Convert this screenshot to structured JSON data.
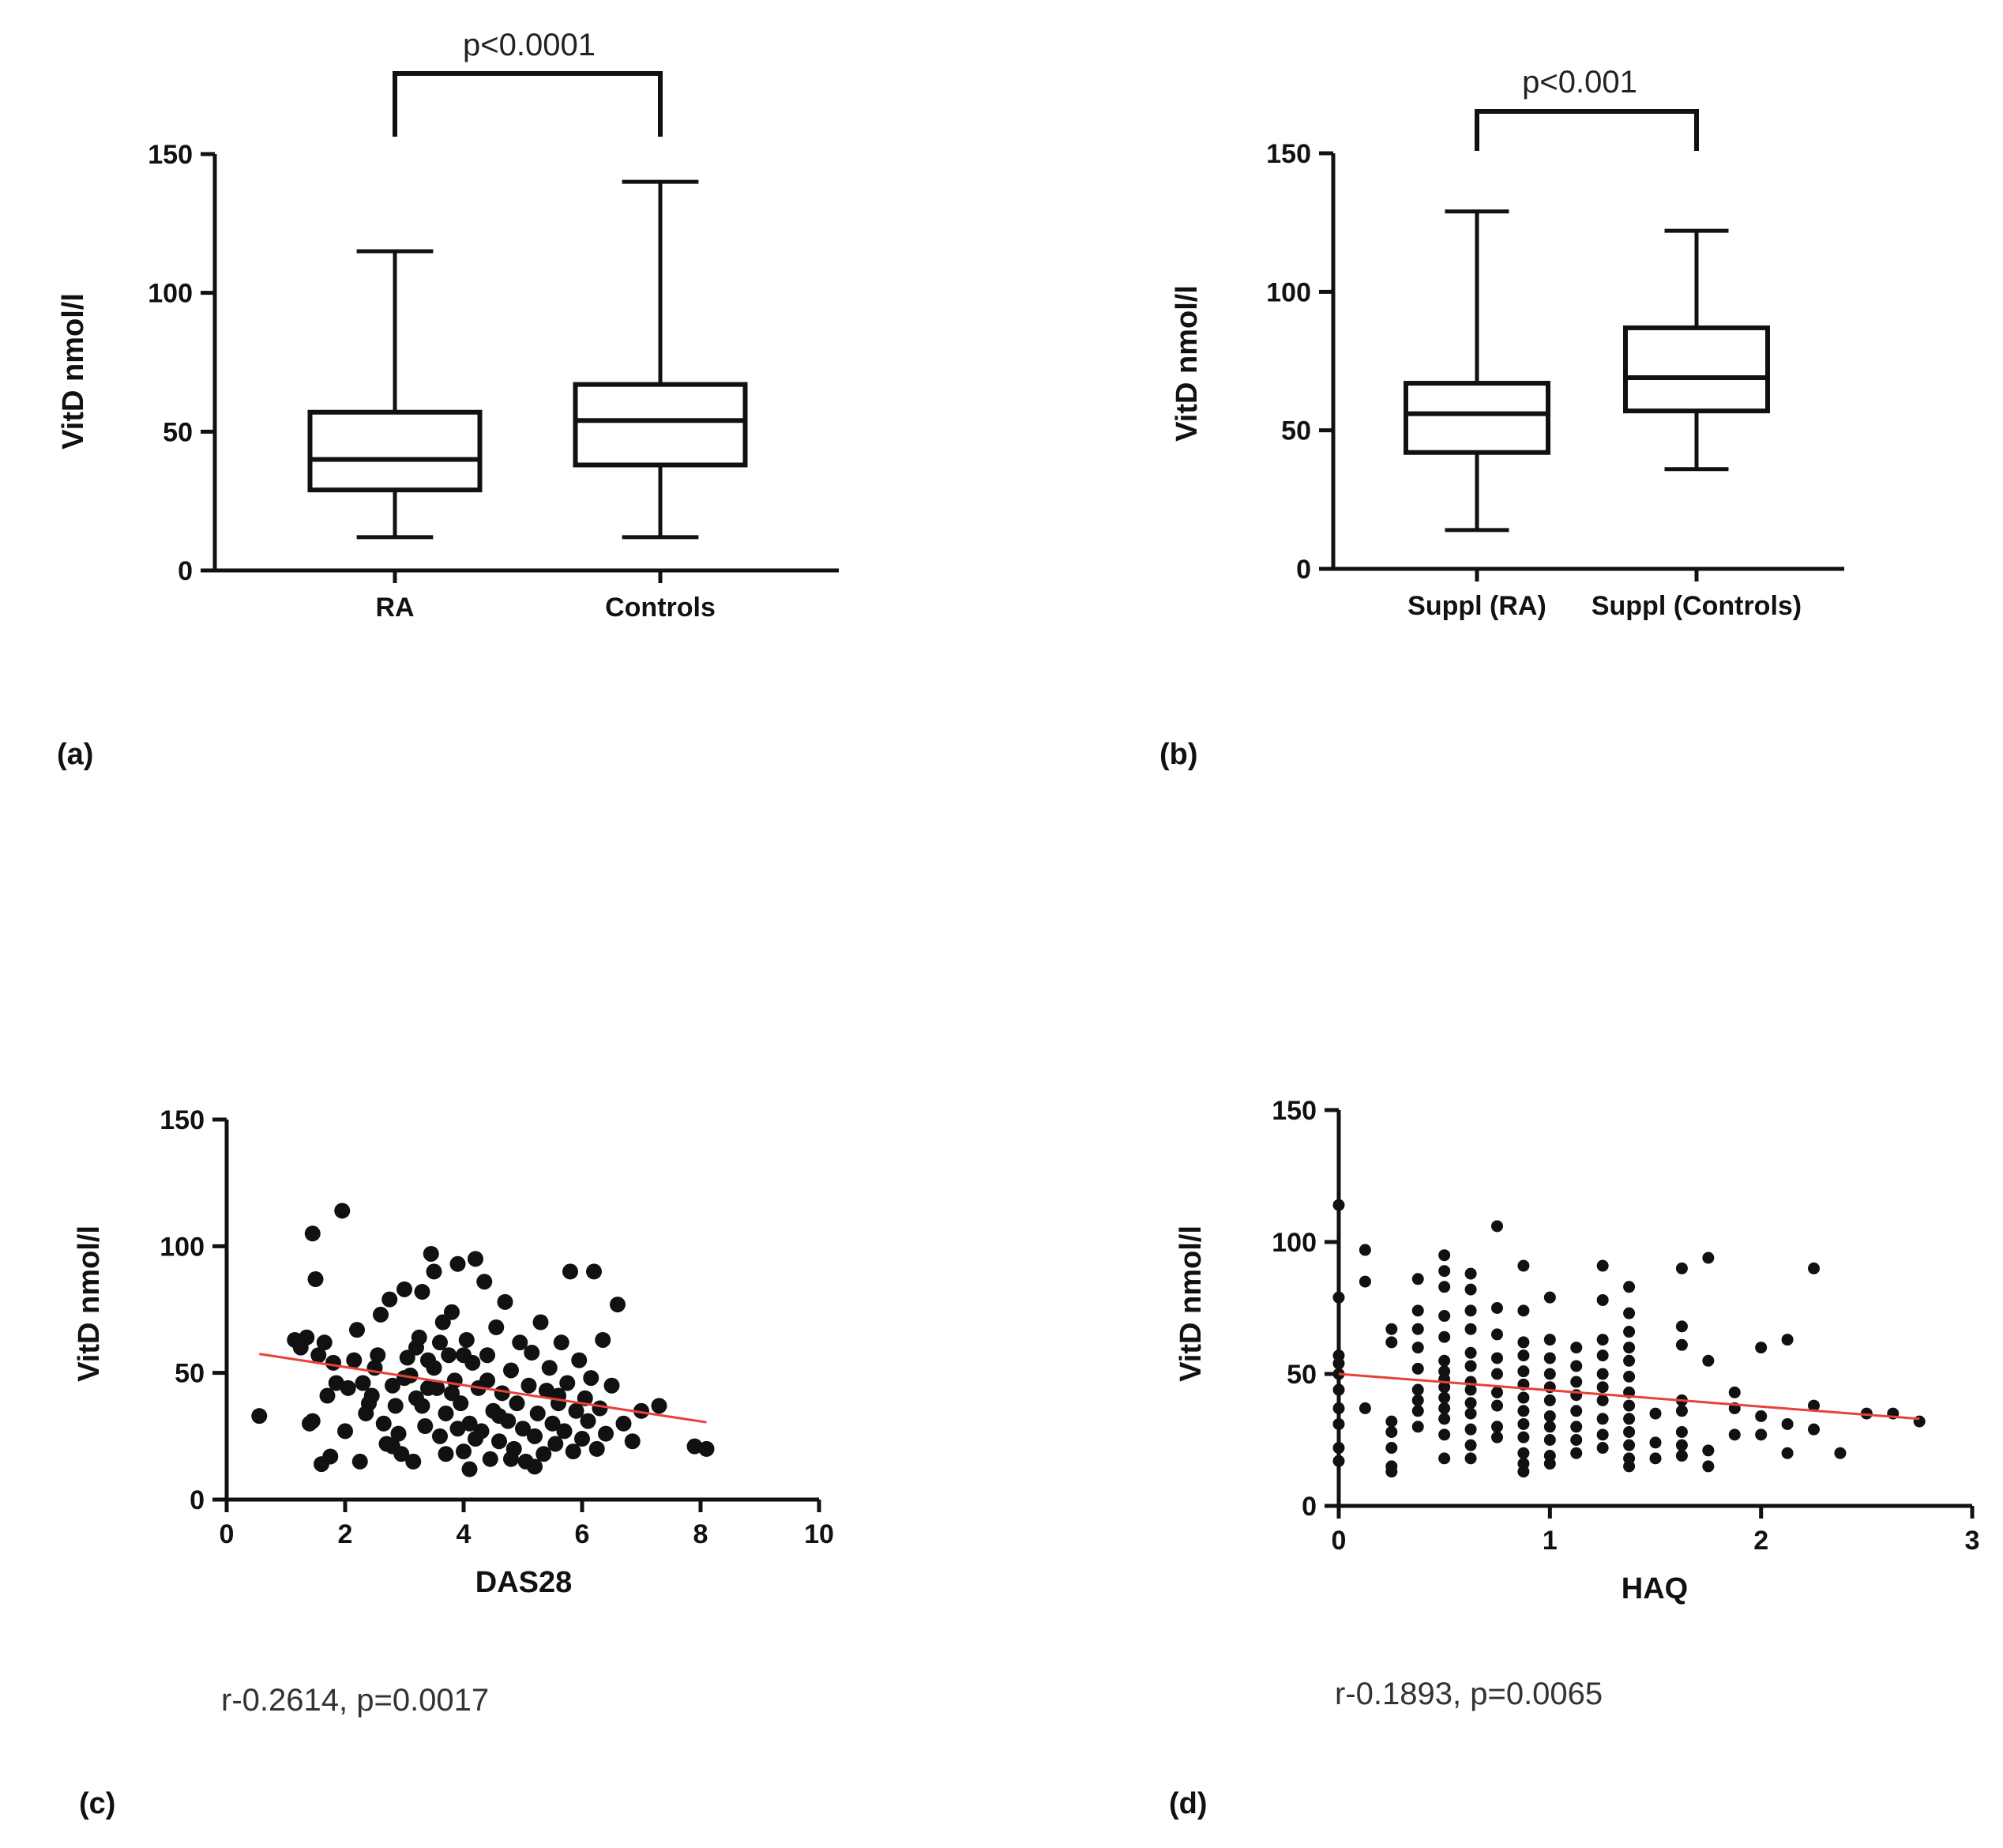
{
  "colors": {
    "ink": "#111111",
    "regression": "#e8413a",
    "background": "#ffffff"
  },
  "chart_data": [
    {
      "panel": "(a)",
      "type": "box",
      "ylabel": "VitD nmol/l",
      "ylim": [
        0,
        150
      ],
      "yticks": [
        "0",
        "50",
        "100",
        "150"
      ],
      "categories": [
        "RA",
        "Controls"
      ],
      "boxes": [
        {
          "name": "RA",
          "min": 12,
          "q1": 29,
          "median": 40,
          "q3": 57,
          "max": 115
        },
        {
          "name": "Controls",
          "min": 12,
          "q1": 38,
          "median": 54,
          "q3": 67,
          "max": 140
        }
      ],
      "significance": "p<0.0001"
    },
    {
      "panel": "(b)",
      "type": "box",
      "ylabel": "VitD nmol/l",
      "ylim": [
        0,
        150
      ],
      "yticks": [
        "0",
        "50",
        "100",
        "150"
      ],
      "categories": [
        "Suppl (RA)",
        "Suppl (Controls)"
      ],
      "boxes": [
        {
          "name": "Suppl (RA)",
          "min": 14,
          "q1": 42,
          "median": 56,
          "q3": 67,
          "max": 129
        },
        {
          "name": "Suppl (Controls)",
          "min": 36,
          "q1": 57,
          "median": 69,
          "q3": 87,
          "max": 122
        }
      ],
      "significance": "p<0.001"
    },
    {
      "panel": "(c)",
      "type": "scatter",
      "xlabel": "DAS28",
      "ylabel": "VitD nmol/l",
      "xlim": [
        0,
        10
      ],
      "ylim": [
        0,
        150
      ],
      "xticks": [
        "0",
        "2",
        "4",
        "6",
        "8",
        "10"
      ],
      "yticks": [
        "0",
        "50",
        "100",
        "150"
      ],
      "regression": {
        "x": [
          0.55,
          8.1
        ],
        "y": [
          57.5,
          30.5
        ]
      },
      "annotation": "r-0.2614, p=0.0017",
      "points": [
        [
          0.55,
          33
        ],
        [
          1.4,
          30
        ],
        [
          1.45,
          31
        ],
        [
          1.45,
          105
        ],
        [
          1.5,
          87
        ],
        [
          1.6,
          14
        ],
        [
          1.7,
          41
        ],
        [
          1.75,
          17
        ],
        [
          1.15,
          63
        ],
        [
          1.25,
          60
        ],
        [
          1.35,
          64
        ],
        [
          1.55,
          57
        ],
        [
          1.65,
          62
        ],
        [
          1.8,
          54
        ],
        [
          1.85,
          46
        ],
        [
          1.95,
          114
        ],
        [
          2.0,
          27
        ],
        [
          2.05,
          44
        ],
        [
          2.15,
          55
        ],
        [
          2.2,
          67
        ],
        [
          2.25,
          15
        ],
        [
          2.3,
          46
        ],
        [
          2.35,
          34
        ],
        [
          2.45,
          41
        ],
        [
          2.5,
          52
        ],
        [
          2.55,
          57
        ],
        [
          2.6,
          73
        ],
        [
          2.65,
          30
        ],
        [
          2.7,
          22
        ],
        [
          2.75,
          79
        ],
        [
          2.8,
          45
        ],
        [
          2.85,
          37
        ],
        [
          2.9,
          26
        ],
        [
          2.95,
          18
        ],
        [
          3.0,
          83
        ],
        [
          3.05,
          56
        ],
        [
          3.1,
          49
        ],
        [
          3.15,
          15
        ],
        [
          3.2,
          40
        ],
        [
          3.25,
          64
        ],
        [
          3.3,
          82
        ],
        [
          3.35,
          29
        ],
        [
          3.4,
          55
        ],
        [
          3.45,
          97
        ],
        [
          3.5,
          90
        ],
        [
          3.55,
          44
        ],
        [
          3.6,
          25
        ],
        [
          3.65,
          70
        ],
        [
          3.7,
          34
        ],
        [
          3.75,
          57
        ],
        [
          3.8,
          74
        ],
        [
          3.85,
          47
        ],
        [
          3.9,
          93
        ],
        [
          3.95,
          38
        ],
        [
          4.0,
          19
        ],
        [
          4.05,
          63
        ],
        [
          4.1,
          30
        ],
        [
          4.15,
          54
        ],
        [
          4.2,
          95
        ],
        [
          4.25,
          44
        ],
        [
          4.3,
          27
        ],
        [
          4.35,
          86
        ],
        [
          4.4,
          57
        ],
        [
          4.45,
          16
        ],
        [
          4.5,
          35
        ],
        [
          4.55,
          68
        ],
        [
          4.6,
          23
        ],
        [
          4.65,
          42
        ],
        [
          4.7,
          78
        ],
        [
          4.75,
          31
        ],
        [
          4.8,
          51
        ],
        [
          4.85,
          20
        ],
        [
          4.9,
          38
        ],
        [
          4.95,
          62
        ],
        [
          5.0,
          28
        ],
        [
          5.05,
          15
        ],
        [
          5.1,
          45
        ],
        [
          5.15,
          58
        ],
        [
          5.2,
          25
        ],
        [
          5.25,
          34
        ],
        [
          5.3,
          70
        ],
        [
          5.35,
          18
        ],
        [
          5.4,
          43
        ],
        [
          5.45,
          52
        ],
        [
          5.5,
          30
        ],
        [
          5.55,
          22
        ],
        [
          5.6,
          38
        ],
        [
          5.65,
          62
        ],
        [
          5.7,
          27
        ],
        [
          5.75,
          46
        ],
        [
          5.8,
          90
        ],
        [
          5.85,
          19
        ],
        [
          5.9,
          35
        ],
        [
          5.95,
          55
        ],
        [
          6.0,
          24
        ],
        [
          6.05,
          40
        ],
        [
          6.1,
          31
        ],
        [
          6.15,
          48
        ],
        [
          6.2,
          90
        ],
        [
          6.25,
          20
        ],
        [
          6.3,
          36
        ],
        [
          6.35,
          63
        ],
        [
          6.4,
          26
        ],
        [
          6.5,
          45
        ],
        [
          6.6,
          77
        ],
        [
          6.7,
          30
        ],
        [
          6.85,
          23
        ],
        [
          7.0,
          35
        ],
        [
          7.3,
          37
        ],
        [
          7.9,
          21
        ],
        [
          8.1,
          20
        ],
        [
          3.2,
          60
        ],
        [
          3.6,
          62
        ],
        [
          4.0,
          57
        ],
        [
          3.5,
          52
        ],
        [
          4.4,
          47
        ],
        [
          3.8,
          42
        ],
        [
          3.3,
          37
        ],
        [
          4.6,
          33
        ],
        [
          3.9,
          28
        ],
        [
          4.2,
          24
        ],
        [
          2.8,
          21
        ],
        [
          3.7,
          18
        ],
        [
          4.8,
          16
        ],
        [
          5.2,
          13
        ],
        [
          4.1,
          12
        ],
        [
          3.0,
          48
        ],
        [
          3.4,
          44
        ],
        [
          2.4,
          38
        ],
        [
          5.6,
          41
        ]
      ]
    },
    {
      "panel": "(d)",
      "type": "scatter",
      "xlabel": "HAQ",
      "ylabel": "VitD nmol/l",
      "xlim": [
        0,
        3
      ],
      "ylim": [
        0,
        150
      ],
      "xticks": [
        "0",
        "1",
        "2",
        "3"
      ],
      "yticks": [
        "0",
        "50",
        "100",
        "150"
      ],
      "regression": {
        "x": [
          0,
          2.75
        ],
        "y": [
          50,
          33
        ]
      },
      "annotation": "r-0.1893, p=0.0065",
      "points": [
        [
          0,
          114
        ],
        [
          0,
          79
        ],
        [
          0,
          57
        ],
        [
          0,
          54
        ],
        [
          0,
          50
        ],
        [
          0,
          44
        ],
        [
          0,
          37
        ],
        [
          0,
          31
        ],
        [
          0,
          22
        ],
        [
          0,
          17
        ],
        [
          0.125,
          97
        ],
        [
          0.125,
          85
        ],
        [
          0.125,
          37
        ],
        [
          0.25,
          67
        ],
        [
          0.25,
          62
        ],
        [
          0.25,
          32
        ],
        [
          0.25,
          28
        ],
        [
          0.25,
          22
        ],
        [
          0.25,
          15
        ],
        [
          0.25,
          13
        ],
        [
          0.375,
          86
        ],
        [
          0.375,
          74
        ],
        [
          0.375,
          67
        ],
        [
          0.375,
          60
        ],
        [
          0.375,
          52
        ],
        [
          0.375,
          44
        ],
        [
          0.375,
          40
        ],
        [
          0.375,
          36
        ],
        [
          0.375,
          30
        ],
        [
          0.5,
          95
        ],
        [
          0.5,
          89
        ],
        [
          0.5,
          83
        ],
        [
          0.5,
          72
        ],
        [
          0.5,
          64
        ],
        [
          0.5,
          55
        ],
        [
          0.5,
          51
        ],
        [
          0.5,
          48
        ],
        [
          0.5,
          45
        ],
        [
          0.5,
          41
        ],
        [
          0.5,
          37
        ],
        [
          0.5,
          33
        ],
        [
          0.5,
          27
        ],
        [
          0.5,
          18
        ],
        [
          0.625,
          88
        ],
        [
          0.625,
          82
        ],
        [
          0.625,
          74
        ],
        [
          0.625,
          67
        ],
        [
          0.625,
          58
        ],
        [
          0.625,
          53
        ],
        [
          0.625,
          47
        ],
        [
          0.625,
          44
        ],
        [
          0.625,
          39
        ],
        [
          0.625,
          35
        ],
        [
          0.625,
          29
        ],
        [
          0.625,
          23
        ],
        [
          0.625,
          18
        ],
        [
          0.75,
          106
        ],
        [
          0.75,
          75
        ],
        [
          0.75,
          65
        ],
        [
          0.75,
          56
        ],
        [
          0.75,
          50
        ],
        [
          0.75,
          43
        ],
        [
          0.75,
          38
        ],
        [
          0.75,
          30
        ],
        [
          0.75,
          26
        ],
        [
          0.875,
          91
        ],
        [
          0.875,
          74
        ],
        [
          0.875,
          62
        ],
        [
          0.875,
          57
        ],
        [
          0.875,
          51
        ],
        [
          0.875,
          46
        ],
        [
          0.875,
          41
        ],
        [
          0.875,
          36
        ],
        [
          0.875,
          31
        ],
        [
          0.875,
          26
        ],
        [
          0.875,
          20
        ],
        [
          0.875,
          16
        ],
        [
          0.875,
          13
        ],
        [
          1.0,
          79
        ],
        [
          1.0,
          63
        ],
        [
          1.0,
          56
        ],
        [
          1.0,
          50
        ],
        [
          1.0,
          45
        ],
        [
          1.0,
          40
        ],
        [
          1.0,
          34
        ],
        [
          1.0,
          30
        ],
        [
          1.0,
          25
        ],
        [
          1.0,
          19
        ],
        [
          1.0,
          16
        ],
        [
          1.125,
          60
        ],
        [
          1.125,
          53
        ],
        [
          1.125,
          47
        ],
        [
          1.125,
          42
        ],
        [
          1.125,
          36
        ],
        [
          1.125,
          30
        ],
        [
          1.125,
          25
        ],
        [
          1.125,
          20
        ],
        [
          1.25,
          91
        ],
        [
          1.25,
          78
        ],
        [
          1.25,
          63
        ],
        [
          1.25,
          57
        ],
        [
          1.25,
          50
        ],
        [
          1.25,
          45
        ],
        [
          1.25,
          40
        ],
        [
          1.25,
          33
        ],
        [
          1.25,
          27
        ],
        [
          1.25,
          22
        ],
        [
          1.375,
          83
        ],
        [
          1.375,
          73
        ],
        [
          1.375,
          66
        ],
        [
          1.375,
          60
        ],
        [
          1.375,
          55
        ],
        [
          1.375,
          49
        ],
        [
          1.375,
          43
        ],
        [
          1.375,
          38
        ],
        [
          1.375,
          33
        ],
        [
          1.375,
          28
        ],
        [
          1.375,
          23
        ],
        [
          1.375,
          18
        ],
        [
          1.375,
          15
        ],
        [
          1.5,
          35
        ],
        [
          1.5,
          24
        ],
        [
          1.5,
          18
        ],
        [
          1.625,
          90
        ],
        [
          1.625,
          68
        ],
        [
          1.625,
          61
        ],
        [
          1.625,
          40
        ],
        [
          1.625,
          36
        ],
        [
          1.625,
          28
        ],
        [
          1.625,
          23
        ],
        [
          1.625,
          19
        ],
        [
          1.75,
          94
        ],
        [
          1.75,
          55
        ],
        [
          1.75,
          21
        ],
        [
          1.75,
          15
        ],
        [
          1.875,
          43
        ],
        [
          1.875,
          37
        ],
        [
          1.875,
          27
        ],
        [
          2.0,
          60
        ],
        [
          2.0,
          34
        ],
        [
          2.0,
          27
        ],
        [
          2.125,
          63
        ],
        [
          2.125,
          31
        ],
        [
          2.125,
          20
        ],
        [
          2.25,
          90
        ],
        [
          2.25,
          38
        ],
        [
          2.25,
          29
        ],
        [
          2.375,
          20
        ],
        [
          2.5,
          35
        ],
        [
          2.625,
          35
        ],
        [
          2.75,
          32
        ]
      ]
    }
  ]
}
